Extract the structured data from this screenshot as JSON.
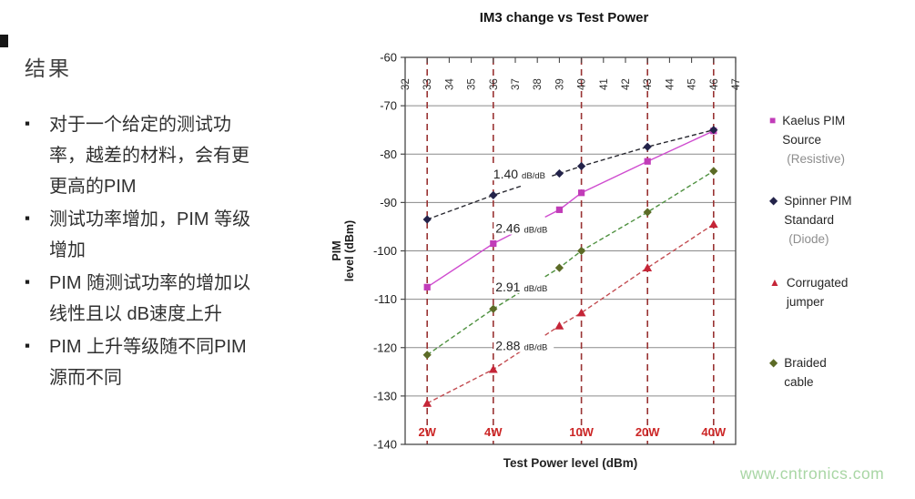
{
  "left_panel": {
    "heading": "结果",
    "bullets": [
      {
        "lines": [
          "对于一个给定的测试功",
          "率，越差的材料，会有更",
          "更高的PIM"
        ]
      },
      {
        "lines": [
          "测试功率增加，PIM 等级",
          "增加"
        ]
      },
      {
        "lines": [
          "PIM 随测试功率的增加以",
          "线性且以 dB速度上升"
        ]
      },
      {
        "lines": [
          "PIM 上升等级随不同PIM",
          "源而不同"
        ]
      }
    ]
  },
  "watermark": "www.cntronics.com",
  "chart_data": {
    "type": "line",
    "title": "IM3 change vs Test Power",
    "xlabel": "Test Power level (dBm)",
    "ylabel_lines": [
      "PIM",
      "level (dBm)"
    ],
    "xlim": [
      32,
      47
    ],
    "ylim": [
      -140,
      -60
    ],
    "x_ticks": [
      32,
      33,
      34,
      35,
      36,
      37,
      38,
      39,
      40,
      41,
      42,
      43,
      44,
      45,
      46,
      47
    ],
    "y_ticks": [
      -60,
      -70,
      -80,
      -90,
      -100,
      -110,
      -120,
      -130,
      -140
    ],
    "grid": true,
    "legend_position": "right",
    "x": [
      33,
      36,
      39,
      40,
      43,
      46
    ],
    "power_columns": [
      {
        "x": 33,
        "label": "2W"
      },
      {
        "x": 36,
        "label": "4W"
      },
      {
        "x": 40,
        "label": "10W"
      },
      {
        "x": 43,
        "label": "20W"
      },
      {
        "x": 46,
        "label": "40W"
      }
    ],
    "series": [
      {
        "name_lines": [
          "Kaelus PIM",
          "Source"
        ],
        "sub": "(Resistive)",
        "marker": "square",
        "line_style": "solid",
        "color": "#c13cb8",
        "line_color": "#cf4ccf",
        "values": [
          -107.5,
          -98.5,
          -91.5,
          -88,
          -81.5,
          -75.2
        ],
        "slope_db_per_db": 2.46
      },
      {
        "name_lines": [
          "Spinner PIM",
          "Standard"
        ],
        "sub": "(Diode)",
        "marker": "diamond",
        "line_style": "dashed",
        "color": "#23234a",
        "line_color": "#26262e",
        "values": [
          -93.5,
          -88.5,
          -84,
          -82.5,
          -78.5,
          -75
        ],
        "slope_db_per_db": 1.4
      },
      {
        "name_lines": [
          "Corrugated",
          "jumper"
        ],
        "sub": "",
        "marker": "triangle",
        "line_style": "dashed",
        "color": "#c52537",
        "line_color": "#c24b50",
        "values": [
          -131.5,
          -124.5,
          -115.5,
          -112.8,
          -103.5,
          -94.5
        ],
        "slope_db_per_db": 2.88
      },
      {
        "name_lines": [
          "Braided",
          "cable"
        ],
        "sub": "",
        "marker": "diamond",
        "line_style": "dashed",
        "color": "#5c6b26",
        "line_color": "#4f9140",
        "values": [
          -121.5,
          -112,
          -103.5,
          -100,
          -92,
          -83.5
        ],
        "slope_db_per_db": 2.91
      }
    ],
    "annotations": [
      {
        "text": "1.40",
        "unit": "dB/dB",
        "x": 36.0,
        "y": -84.3,
        "series": "Spinner PIM Standard"
      },
      {
        "text": "2.46",
        "unit": "dB/dB",
        "x": 36.1,
        "y": -95.5,
        "series": "Kaelus PIM Source"
      },
      {
        "text": "2.91",
        "unit": "dB/dB",
        "x": 36.1,
        "y": -107.6,
        "series": "Braided cable"
      },
      {
        "text": "2.88",
        "unit": "dB/dB",
        "x": 36.1,
        "y": -119.8,
        "series": "Corrugated jumper"
      }
    ],
    "column_color": "#993333",
    "grid_color": "#8a8a8a",
    "axis_color": "#474747",
    "tick_label_color": "#333333",
    "power_label_color": "#cc2626",
    "title_color": "#141414"
  }
}
